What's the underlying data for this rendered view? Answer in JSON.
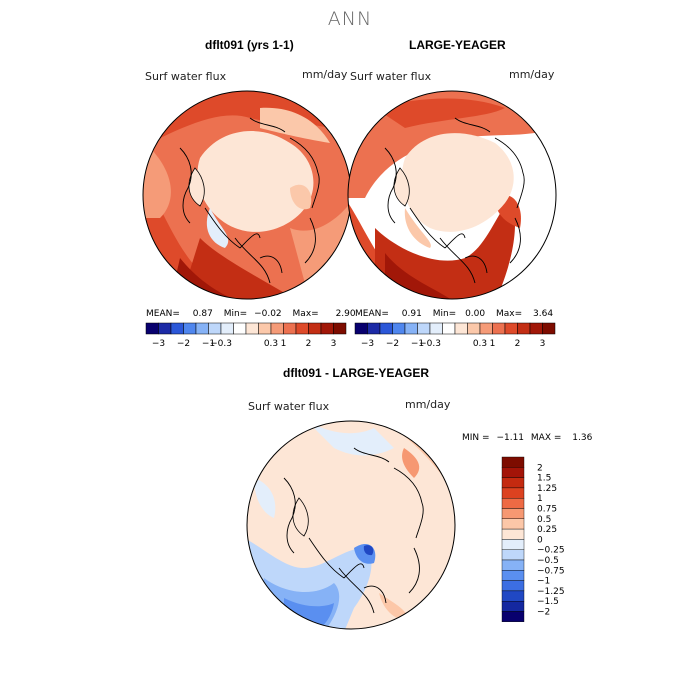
{
  "page": {
    "title": "ANN"
  },
  "panels": [
    {
      "title": "dflt091 (yrs 1-1)",
      "variable": "Surf water flux",
      "units": "mm/day",
      "stats": {
        "mean_label": "MEAN=",
        "mean": "0.87",
        "min_label": "Min=",
        "min": "−0.02",
        "max_label": "Max=",
        "max": "2.90"
      },
      "colorbar": {
        "ticks": [
          "−3",
          "−2",
          "−1",
          "−0.3",
          "0.3",
          "1",
          "2",
          "3"
        ],
        "colors": [
          "#08006e",
          "#1c2aa6",
          "#2b57d8",
          "#4f86ee",
          "#86b2f6",
          "#bed7fa",
          "#e3eefb",
          "#ffffff",
          "#fde6d6",
          "#fbc8aa",
          "#f59b78",
          "#ec7150",
          "#de4a2a",
          "#c32e14",
          "#a11708",
          "#7d0c00"
        ]
      }
    },
    {
      "title": "LARGE-YEAGER",
      "variable": "Surf water flux",
      "units": "mm/day",
      "stats": {
        "mean_label": "MEAN=",
        "mean": "0.91",
        "min_label": "Min=",
        "min": "0.00",
        "max_label": "Max=",
        "max": "3.64"
      },
      "colorbar": {
        "ticks": [
          "−3",
          "−2",
          "−1",
          "−0.3",
          "0.3",
          "1",
          "2",
          "3"
        ],
        "colors": [
          "#08006e",
          "#1c2aa6",
          "#2b57d8",
          "#4f86ee",
          "#86b2f6",
          "#bed7fa",
          "#e3eefb",
          "#ffffff",
          "#fde6d6",
          "#fbc8aa",
          "#f59b78",
          "#ec7150",
          "#de4a2a",
          "#c32e14",
          "#a11708",
          "#7d0c00"
        ]
      }
    },
    {
      "title": "dflt091 - LARGE-YEAGER",
      "variable": "Surf water flux",
      "units": "mm/day",
      "stats": {
        "min_label": "MIN =",
        "min": "−1.11",
        "max_label": "MAX =",
        "max": "1.36"
      },
      "colorbar": {
        "ticks": [
          "2",
          "1.5",
          "1.25",
          "1",
          "0.75",
          "0.5",
          "0.25",
          "0",
          "−0.25",
          "−0.5",
          "−0.75",
          "−1",
          "−1.25",
          "−1.5",
          "−2"
        ],
        "colors": [
          "#7d0c00",
          "#a31408",
          "#c42a10",
          "#dc4220",
          "#ee6a44",
          "#f69872",
          "#fcc7a8",
          "#fde6d6",
          "#e3eefb",
          "#bed7fa",
          "#86b2f6",
          "#5a8ff0",
          "#3c6ee2",
          "#2048c4",
          "#1428a0",
          "#08006e"
        ]
      }
    }
  ]
}
